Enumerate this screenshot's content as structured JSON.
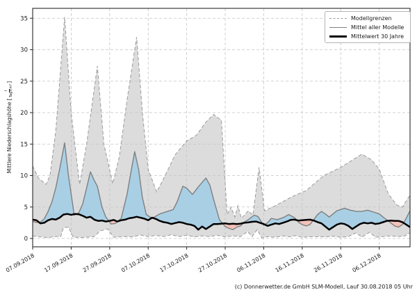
{
  "figure": {
    "caption": "(c) Donnerwetter.de GmbH SLM-Modell, Lauf 30.08.2018 05 Uhr"
  },
  "legend": {
    "items": [
      {
        "label": "Modellgrenzen",
        "style": "dashed-gray"
      },
      {
        "label": "Mittel aller Modelle",
        "style": "solid-gray"
      },
      {
        "label": "Mittelwert 30 Jahre",
        "style": "thick-black"
      }
    ]
  },
  "axes": {
    "y_title_prefix": "Mittlere Niederschlagshöhe [",
    "y_title_suffix": "]",
    "unit_numerator": "l",
    "unit_denominator": "Tag×m²",
    "y_ticks": [
      0,
      5,
      10,
      15,
      20,
      25,
      30,
      35
    ],
    "x_tick_days": [
      0,
      10,
      20,
      30,
      40,
      50,
      60,
      70,
      80,
      90
    ],
    "x_tick_labels": [
      "07.09.2018",
      "17.09.2018",
      "27.09.2018",
      "07.10.2018",
      "17.10.2018",
      "27.10.2018",
      "06.11.2018",
      "16.11.2018",
      "26.11.2018",
      "06.12.2018"
    ]
  },
  "chart_data": {
    "type": "area",
    "title": "",
    "xlabel": "",
    "ylabel": "Mittlere Niederschlagshöhe [l/(Tag×m²)]",
    "x_unit": "days since 07.09.2018",
    "x_range": [
      0,
      98
    ],
    "ylim": [
      -1.3,
      36.8
    ],
    "grid": true,
    "legend_position": "upper right",
    "colors": {
      "envelope_fill": "#dcdcdc",
      "envelope_line": "#9a9a9a",
      "above_fill": "#a9cfe5",
      "below_fill": "#f2c1b9",
      "mean_line": "#7f7f7f",
      "clim_line": "#000000",
      "grid_line": "#c4c4c4",
      "frame": "#262626"
    },
    "series": [
      {
        "name": "Modellgrenzen (obere Grenze)",
        "points": [
          [
            0,
            11.5
          ],
          [
            1.5,
            9.6
          ],
          [
            3.5,
            8.6
          ],
          [
            4.5,
            10
          ],
          [
            6,
            17
          ],
          [
            8.3,
            35.2
          ],
          [
            10,
            20
          ],
          [
            12.2,
            8.6
          ],
          [
            14,
            15
          ],
          [
            16.8,
            27.4
          ],
          [
            18.5,
            15
          ],
          [
            20.8,
            8.7
          ],
          [
            22.5,
            13
          ],
          [
            24.5,
            22
          ],
          [
            27,
            32
          ],
          [
            28.5,
            20
          ],
          [
            30,
            11
          ],
          [
            32.2,
            7.4
          ],
          [
            34,
            9.5
          ],
          [
            37,
            13.3
          ],
          [
            40,
            15.5
          ],
          [
            42.5,
            16.4
          ],
          [
            45,
            18.5
          ],
          [
            47,
            19.7
          ],
          [
            49,
            18.8
          ],
          [
            50.5,
            3.8
          ],
          [
            51.5,
            5
          ],
          [
            52.5,
            3.4
          ],
          [
            53.3,
            5.2
          ],
          [
            54.2,
            3.2
          ],
          [
            56,
            4.4
          ],
          [
            57.2,
            3.7
          ],
          [
            58.8,
            11.3
          ],
          [
            60.2,
            4.4
          ],
          [
            63,
            5.2
          ],
          [
            67.5,
            6.7
          ],
          [
            71,
            7.6
          ],
          [
            75.6,
            10
          ],
          [
            80,
            11.3
          ],
          [
            85.5,
            13.4
          ],
          [
            88,
            12.5
          ],
          [
            90,
            11
          ],
          [
            92.4,
            7
          ],
          [
            94.6,
            5.3
          ],
          [
            96,
            5
          ],
          [
            98,
            6.9
          ]
        ]
      },
      {
        "name": "Modellgrenzen (untere Grenze)",
        "points": [
          [
            0,
            0.4
          ],
          [
            2,
            0.25
          ],
          [
            4,
            0.15
          ],
          [
            6,
            0.3
          ],
          [
            7.3,
            0.3
          ],
          [
            8,
            1.7
          ],
          [
            9.3,
            1.8
          ],
          [
            10.5,
            0.2
          ],
          [
            13,
            0.15
          ],
          [
            16,
            0.3
          ],
          [
            17.5,
            1.2
          ],
          [
            19.5,
            1.5
          ],
          [
            21,
            0.2
          ],
          [
            24,
            0.3
          ],
          [
            26,
            0.25
          ],
          [
            28,
            0.55
          ],
          [
            30,
            0.3
          ],
          [
            32,
            0.5
          ],
          [
            34,
            0.3
          ],
          [
            36,
            0.6
          ],
          [
            38,
            0.3
          ],
          [
            40,
            0.5
          ],
          [
            42,
            0.25
          ],
          [
            44,
            0.4
          ],
          [
            46,
            0.3
          ],
          [
            48,
            0.5
          ],
          [
            50,
            0.25
          ],
          [
            52,
            0.4
          ],
          [
            54,
            0.3
          ],
          [
            55.8,
            1.1
          ],
          [
            57,
            0.3
          ],
          [
            58.3,
            1.4
          ],
          [
            59.5,
            0.1
          ],
          [
            61,
            0.3
          ],
          [
            63,
            0.2
          ],
          [
            65,
            0.4
          ],
          [
            67,
            0.25
          ],
          [
            68,
            0.45
          ],
          [
            70,
            0.2
          ],
          [
            73,
            0.3
          ],
          [
            76,
            0.25
          ],
          [
            78,
            0.35
          ],
          [
            80,
            0.2
          ],
          [
            82,
            0.3
          ],
          [
            84,
            0.9
          ],
          [
            85.5,
            0.2
          ],
          [
            87.5,
            1
          ],
          [
            89,
            0.2
          ],
          [
            91,
            0.3
          ],
          [
            93,
            0.4
          ],
          [
            95,
            0.3
          ],
          [
            96.5,
            0.35
          ],
          [
            98,
            0.9
          ]
        ]
      },
      {
        "name": "Mittel aller Modelle",
        "points": [
          [
            0,
            2.7
          ],
          [
            1,
            2.55
          ],
          [
            2,
            2.6
          ],
          [
            3,
            3.1
          ],
          [
            4,
            4.3
          ],
          [
            5,
            5.8
          ],
          [
            6,
            8
          ],
          [
            7,
            11
          ],
          [
            8.3,
            15.2
          ],
          [
            9.3,
            10
          ],
          [
            10.8,
            3.7
          ],
          [
            12,
            4.1
          ],
          [
            13,
            5.5
          ],
          [
            14,
            8
          ],
          [
            15,
            10.6
          ],
          [
            16,
            9.2
          ],
          [
            16.8,
            8.3
          ],
          [
            18,
            5
          ],
          [
            19,
            3.4
          ],
          [
            20.4,
            2.3
          ],
          [
            21.5,
            2.4
          ],
          [
            23,
            3.2
          ],
          [
            24.5,
            7
          ],
          [
            25.5,
            10.5
          ],
          [
            26.5,
            13.8
          ],
          [
            27.5,
            11
          ],
          [
            28.5,
            6.5
          ],
          [
            29.5,
            3.8
          ],
          [
            31,
            3.2
          ],
          [
            33,
            3.9
          ],
          [
            35,
            4.3
          ],
          [
            36.5,
            4.6
          ],
          [
            37.5,
            5.8
          ],
          [
            39,
            8.3
          ],
          [
            40,
            8
          ],
          [
            41.5,
            7
          ],
          [
            43,
            8.2
          ],
          [
            45,
            9.6
          ],
          [
            46,
            8.5
          ],
          [
            47,
            6.2
          ],
          [
            48.5,
            3
          ],
          [
            50,
            1.9
          ],
          [
            51,
            1.6
          ],
          [
            52,
            1.4
          ],
          [
            53,
            1.8
          ],
          [
            54,
            2
          ],
          [
            55,
            2.6
          ],
          [
            56,
            3
          ],
          [
            57.5,
            3.7
          ],
          [
            58.5,
            3.5
          ],
          [
            60,
            2.1
          ],
          [
            61,
            2.5
          ],
          [
            62,
            3.2
          ],
          [
            63.5,
            3
          ],
          [
            65,
            3.3
          ],
          [
            66.5,
            3.8
          ],
          [
            68,
            3.3
          ],
          [
            69,
            2.6
          ],
          [
            70,
            2.2
          ],
          [
            71,
            2
          ],
          [
            72,
            2.2
          ],
          [
            73,
            3
          ],
          [
            74,
            3.8
          ],
          [
            75,
            4.3
          ],
          [
            76,
            3.9
          ],
          [
            77,
            3.4
          ],
          [
            78,
            3.9
          ],
          [
            79,
            4.4
          ],
          [
            81,
            4.8
          ],
          [
            82.5,
            4.5
          ],
          [
            84,
            4.3
          ],
          [
            85.5,
            4.3
          ],
          [
            87,
            4.5
          ],
          [
            88.5,
            4.2
          ],
          [
            90,
            3.9
          ],
          [
            91,
            3.4
          ],
          [
            92.5,
            2.7
          ],
          [
            94,
            2
          ],
          [
            95,
            1.8
          ],
          [
            96,
            2.2
          ],
          [
            96.8,
            3
          ],
          [
            98,
            4.4
          ]
        ]
      },
      {
        "name": "Mittelwert 30 Jahre",
        "points": [
          [
            0,
            3
          ],
          [
            1,
            2.9
          ],
          [
            2,
            2.4
          ],
          [
            3,
            2.5
          ],
          [
            4,
            2.9
          ],
          [
            5,
            3.1
          ],
          [
            6,
            3
          ],
          [
            7,
            3.3
          ],
          [
            8,
            3.8
          ],
          [
            9,
            3.9
          ],
          [
            10,
            3.75
          ],
          [
            11,
            3.9
          ],
          [
            12,
            3.85
          ],
          [
            13,
            3.6
          ],
          [
            14,
            3.3
          ],
          [
            15,
            3.45
          ],
          [
            16,
            3
          ],
          [
            17,
            2.8
          ],
          [
            18,
            2.85
          ],
          [
            19,
            2.7
          ],
          [
            20,
            2.8
          ],
          [
            21,
            2.95
          ],
          [
            22,
            2.7
          ],
          [
            23,
            2.9
          ],
          [
            24,
            3
          ],
          [
            25,
            3.2
          ],
          [
            26,
            3.3
          ],
          [
            27,
            3.45
          ],
          [
            28,
            3.3
          ],
          [
            29,
            3.15
          ],
          [
            30,
            2.9
          ],
          [
            31,
            3.3
          ],
          [
            32,
            3.1
          ],
          [
            33,
            2.8
          ],
          [
            34,
            2.6
          ],
          [
            35,
            2.5
          ],
          [
            36,
            2.3
          ],
          [
            37,
            2.45
          ],
          [
            38,
            2.6
          ],
          [
            39,
            2.5
          ],
          [
            40,
            2.3
          ],
          [
            41,
            2.2
          ],
          [
            42,
            2
          ],
          [
            43,
            1.4
          ],
          [
            44,
            1.9
          ],
          [
            45,
            1.5
          ],
          [
            46,
            1.9
          ],
          [
            47,
            2.3
          ],
          [
            48,
            2.3
          ],
          [
            49,
            2.35
          ],
          [
            50,
            2.4
          ],
          [
            51,
            2.3
          ],
          [
            52,
            2.35
          ],
          [
            53,
            2.3
          ],
          [
            54,
            2.35
          ],
          [
            55,
            2.5
          ],
          [
            56,
            2.55
          ],
          [
            57,
            2.65
          ],
          [
            58,
            2.7
          ],
          [
            59,
            2.5
          ],
          [
            60,
            2.3
          ],
          [
            61,
            2
          ],
          [
            62,
            2.2
          ],
          [
            63,
            2.4
          ],
          [
            64,
            2.3
          ],
          [
            65,
            2.5
          ],
          [
            66,
            2.7
          ],
          [
            67,
            2.95
          ],
          [
            68,
            3
          ],
          [
            69,
            2.85
          ],
          [
            70,
            2.9
          ],
          [
            71,
            2.95
          ],
          [
            72,
            3
          ],
          [
            73,
            2.85
          ],
          [
            74,
            2.6
          ],
          [
            75,
            2.4
          ],
          [
            76,
            1.9
          ],
          [
            77,
            1.4
          ],
          [
            78,
            1.8
          ],
          [
            79,
            2.2
          ],
          [
            80,
            2.4
          ],
          [
            81,
            2.3
          ],
          [
            82,
            2
          ],
          [
            83,
            1.5
          ],
          [
            84,
            1.9
          ],
          [
            85,
            2.3
          ],
          [
            86,
            2.5
          ],
          [
            87,
            2.4
          ],
          [
            88,
            2.5
          ],
          [
            89,
            2.3
          ],
          [
            90,
            2.4
          ],
          [
            91,
            2.6
          ],
          [
            92,
            2.8
          ],
          [
            93,
            2.85
          ],
          [
            94,
            2.8
          ],
          [
            95,
            2.8
          ],
          [
            96,
            2.6
          ],
          [
            97,
            2.2
          ],
          [
            98,
            1.8
          ]
        ]
      }
    ]
  }
}
